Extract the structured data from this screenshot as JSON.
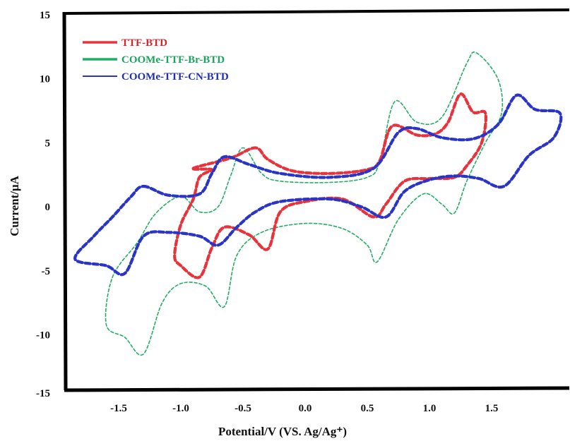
{
  "chart_data": {
    "type": "line",
    "title": "",
    "xlabel": "Potential/V (VS. Ag/Ag⁺)",
    "ylabel": "Current/μA",
    "xlim": [
      -2.0,
      2.0
    ],
    "ylim": [
      -15,
      15
    ],
    "xticks": [
      "-1.5",
      "-1.0",
      "-0.5",
      "0.0",
      "0.5",
      "1.0",
      "1.5"
    ],
    "yticks": [
      "15",
      "10",
      "5",
      "0",
      "-5",
      "-10",
      "-15"
    ],
    "grid": false,
    "legend_position": "top-left",
    "series": [
      {
        "name": "TTF-BTD",
        "color": "#e8323c",
        "line_color": "#e8323c",
        "text_color": "#d8232a",
        "line_style": "dashed-bold",
        "points": [
          [
            -0.9,
            3.0
          ],
          [
            -0.6,
            3.8
          ],
          [
            -0.4,
            4.6
          ],
          [
            -0.3,
            3.7
          ],
          [
            -0.1,
            2.8
          ],
          [
            0.2,
            2.6
          ],
          [
            0.5,
            2.9
          ],
          [
            0.6,
            3.6
          ],
          [
            0.7,
            6.3
          ],
          [
            0.9,
            5.6
          ],
          [
            1.05,
            5.7
          ],
          [
            1.15,
            6.6
          ],
          [
            1.25,
            8.8
          ],
          [
            1.35,
            7.4
          ],
          [
            1.45,
            7.3
          ],
          [
            1.42,
            5.0
          ],
          [
            1.3,
            3.2
          ],
          [
            1.2,
            2.3
          ],
          [
            1.0,
            2.2
          ],
          [
            0.8,
            2.0
          ],
          [
            0.65,
            0.2
          ],
          [
            0.55,
            -0.8
          ],
          [
            0.3,
            0.6
          ],
          [
            0.0,
            0.4
          ],
          [
            -0.2,
            -0.4
          ],
          [
            -0.3,
            -3.3
          ],
          [
            -0.45,
            -2.2
          ],
          [
            -0.65,
            -1.6
          ],
          [
            -0.75,
            -3.2
          ],
          [
            -0.85,
            -5.5
          ],
          [
            -1.0,
            -4.6
          ],
          [
            -1.05,
            -3.8
          ],
          [
            -1.0,
            -1.4
          ],
          [
            -0.9,
            0.6
          ],
          [
            -0.85,
            2.3
          ],
          [
            -0.75,
            2.9
          ]
        ]
      },
      {
        "name": "COOMe-TTF-Br-BTD",
        "color": "#1aa55a",
        "line_color": "#1fae63",
        "text_color": "#1aa55a",
        "line_style": "dashed-thin",
        "points": [
          [
            -1.0,
            0.8
          ],
          [
            -0.85,
            -0.4
          ],
          [
            -0.7,
            0.0
          ],
          [
            -0.6,
            2.4
          ],
          [
            -0.5,
            4.6
          ],
          [
            -0.35,
            2.6
          ],
          [
            -0.2,
            2.0
          ],
          [
            0.2,
            1.9
          ],
          [
            0.5,
            2.3
          ],
          [
            0.6,
            3.5
          ],
          [
            0.72,
            8.2
          ],
          [
            0.9,
            6.6
          ],
          [
            1.1,
            7.0
          ],
          [
            1.3,
            11.2
          ],
          [
            1.38,
            12.0
          ],
          [
            1.55,
            10.0
          ],
          [
            1.58,
            7.3
          ],
          [
            1.45,
            5.0
          ],
          [
            1.3,
            2.0
          ],
          [
            1.2,
            -0.5
          ],
          [
            1.1,
            0.2
          ],
          [
            0.95,
            1.0
          ],
          [
            0.75,
            -1.0
          ],
          [
            0.58,
            -4.3
          ],
          [
            0.5,
            -3.0
          ],
          [
            0.3,
            -1.7
          ],
          [
            0.0,
            -1.3
          ],
          [
            -0.35,
            -2.0
          ],
          [
            -0.55,
            -3.8
          ],
          [
            -0.65,
            -7.8
          ],
          [
            -0.8,
            -6.2
          ],
          [
            -1.0,
            -6.0
          ],
          [
            -1.15,
            -7.5
          ],
          [
            -1.3,
            -11.5
          ],
          [
            -1.45,
            -10.2
          ],
          [
            -1.6,
            -9.2
          ],
          [
            -1.55,
            -5.5
          ],
          [
            -1.35,
            -2.8
          ],
          [
            -1.2,
            -0.5
          ]
        ]
      },
      {
        "name": "COOMe-TTF-CN-BTD",
        "color": "#2a35c8",
        "line_color": "#2a35c8",
        "text_color": "#1f2fb5",
        "line_style": "dashed-bold",
        "points": [
          [
            -1.3,
            1.6
          ],
          [
            -1.1,
            0.9
          ],
          [
            -0.85,
            1.0
          ],
          [
            -0.75,
            2.6
          ],
          [
            -0.65,
            3.9
          ],
          [
            -0.45,
            3.3
          ],
          [
            -0.2,
            2.6
          ],
          [
            0.2,
            2.3
          ],
          [
            0.55,
            3.0
          ],
          [
            0.75,
            5.8
          ],
          [
            0.9,
            6.1
          ],
          [
            1.1,
            5.4
          ],
          [
            1.35,
            5.3
          ],
          [
            1.55,
            6.4
          ],
          [
            1.7,
            8.7
          ],
          [
            1.85,
            7.6
          ],
          [
            2.05,
            7.3
          ],
          [
            2.0,
            5.4
          ],
          [
            1.8,
            4.0
          ],
          [
            1.6,
            1.6
          ],
          [
            1.4,
            2.2
          ],
          [
            1.2,
            2.4
          ],
          [
            1.0,
            2.1
          ],
          [
            0.8,
            1.2
          ],
          [
            0.65,
            -0.8
          ],
          [
            0.45,
            0.0
          ],
          [
            0.2,
            0.6
          ],
          [
            -0.2,
            0.4
          ],
          [
            -0.4,
            -0.4
          ],
          [
            -0.55,
            -1.6
          ],
          [
            -0.7,
            -3.0
          ],
          [
            -0.85,
            -2.3
          ],
          [
            -1.1,
            -2.0
          ],
          [
            -1.3,
            -2.3
          ],
          [
            -1.45,
            -5.2
          ],
          [
            -1.6,
            -4.6
          ],
          [
            -1.85,
            -4.1
          ],
          [
            -1.7,
            -2.3
          ],
          [
            -1.55,
            -0.8
          ],
          [
            -1.4,
            0.8
          ]
        ]
      }
    ]
  }
}
